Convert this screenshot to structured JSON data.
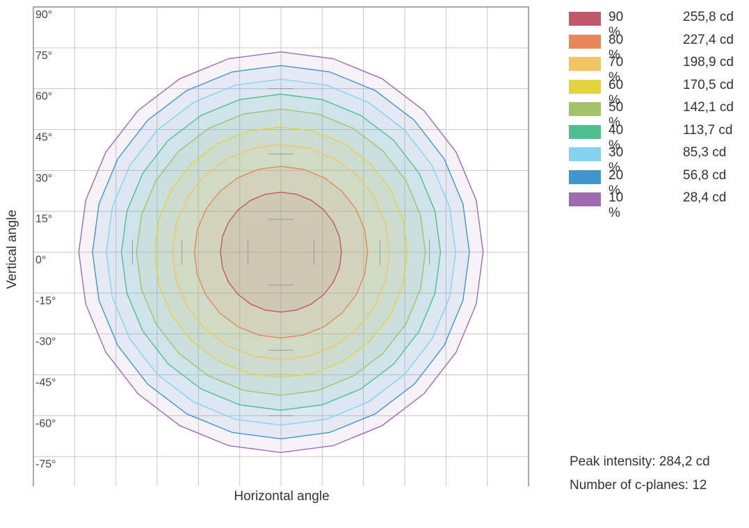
{
  "chart_data": {
    "type": "contour",
    "xlabel": "Horizontal angle",
    "ylabel": "Vertical angle",
    "y_ticks": [
      "90°",
      "75°",
      "60°",
      "45°",
      "30°",
      "15°",
      "0°",
      "-15°",
      "-30°",
      "-45°",
      "-60°",
      "-75°"
    ],
    "ylim": [
      -90,
      90
    ],
    "xlim": [
      -90,
      90
    ],
    "grid": true,
    "legend_position": "right",
    "levels": [
      {
        "percent": "90 %",
        "value": "255,8 cd",
        "radius_deg": 22,
        "color": "#c0576a"
      },
      {
        "percent": "80 %",
        "value": "227,4 cd",
        "radius_deg": 31.5,
        "color": "#e8855a"
      },
      {
        "percent": "70 %",
        "value": "198,9 cd",
        "radius_deg": 39.5,
        "color": "#f2c462"
      },
      {
        "percent": "60 %",
        "value": "170,5 cd",
        "radius_deg": 46,
        "color": "#e3d33c"
      },
      {
        "percent": "50 %",
        "value": "142,1 cd",
        "radius_deg": 52.5,
        "color": "#a3c26a"
      },
      {
        "percent": "40 %",
        "value": "113,7 cd",
        "radius_deg": 58,
        "color": "#4fbf8f"
      },
      {
        "percent": "30 %",
        "value": "85,3 cd",
        "radius_deg": 63.5,
        "color": "#85d1f2"
      },
      {
        "percent": "20 %",
        "value": "56,8 cd",
        "radius_deg": 68.5,
        "color": "#3f95cc"
      },
      {
        "percent": "10 %",
        "value": "28,4 cd",
        "radius_deg": 73.5,
        "color": "#9d6bb0"
      }
    ],
    "peak_intensity": "Peak intensity: 284,2 cd",
    "c_planes": "Number of c-planes: 12"
  }
}
